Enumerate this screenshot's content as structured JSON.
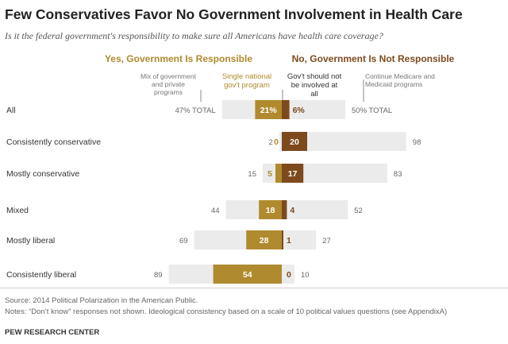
{
  "title": "Few Conservatives Favor No Government Involvement in Health Care",
  "subtitle": "Is it the federal government's responsibility to make sure all Americans have health care coverage?",
  "source": "Source: 2014 Political Polarization in the American Public.",
  "notes": "Notes: “Don’t know” responses not shown. Ideological consistency based on a scale of 10 political values questions (see AppendixA)",
  "brand": "PEW RESEARCH CENTER",
  "colors": {
    "yes_light": "#ebebeb",
    "yes_dark": "#b08a2e",
    "no_dark": "#7d4a1e",
    "no_light": "#ebebeb",
    "heading_yes": "#b08a2e",
    "heading_no": "#7d4a1e"
  },
  "chart_data": {
    "type": "bar",
    "orientation": "horizontal-diverging",
    "title": "Few Conservatives Favor No Government Involvement in Health Care",
    "group_headings": {
      "yes": "Yes, Government Is Responsible",
      "no": "No, Government Is Not Responsible"
    },
    "annotations": {
      "yes_total": "Mix of government and private programs",
      "yes_single": "Single national gov't program",
      "no_none": "Gov't should not be involved at all",
      "no_continue": "Continue Medicare and Medicaid programs"
    },
    "categories": [
      "All",
      "Consistently conservative",
      "Mostly conservative",
      "Mixed",
      "Mostly liberal",
      "Consistently liberal"
    ],
    "series": [
      {
        "name": "Yes, government is responsible (total)",
        "values": [
          47,
          2,
          15,
          44,
          69,
          89
        ]
      },
      {
        "name": "Single national gov't program",
        "values": [
          21,
          0,
          5,
          18,
          28,
          54
        ]
      },
      {
        "name": "Gov't should not be involved at all",
        "values": [
          6,
          20,
          17,
          4,
          1,
          0
        ]
      },
      {
        "name": "No, government is not responsible (total)",
        "values": [
          50,
          98,
          83,
          52,
          27,
          10
        ]
      }
    ],
    "all_row_labels": {
      "yes_total": "47% TOTAL",
      "single": "21%",
      "none": "6%",
      "no_total": "50% TOTAL"
    },
    "ylim": [
      0,
      100
    ]
  }
}
